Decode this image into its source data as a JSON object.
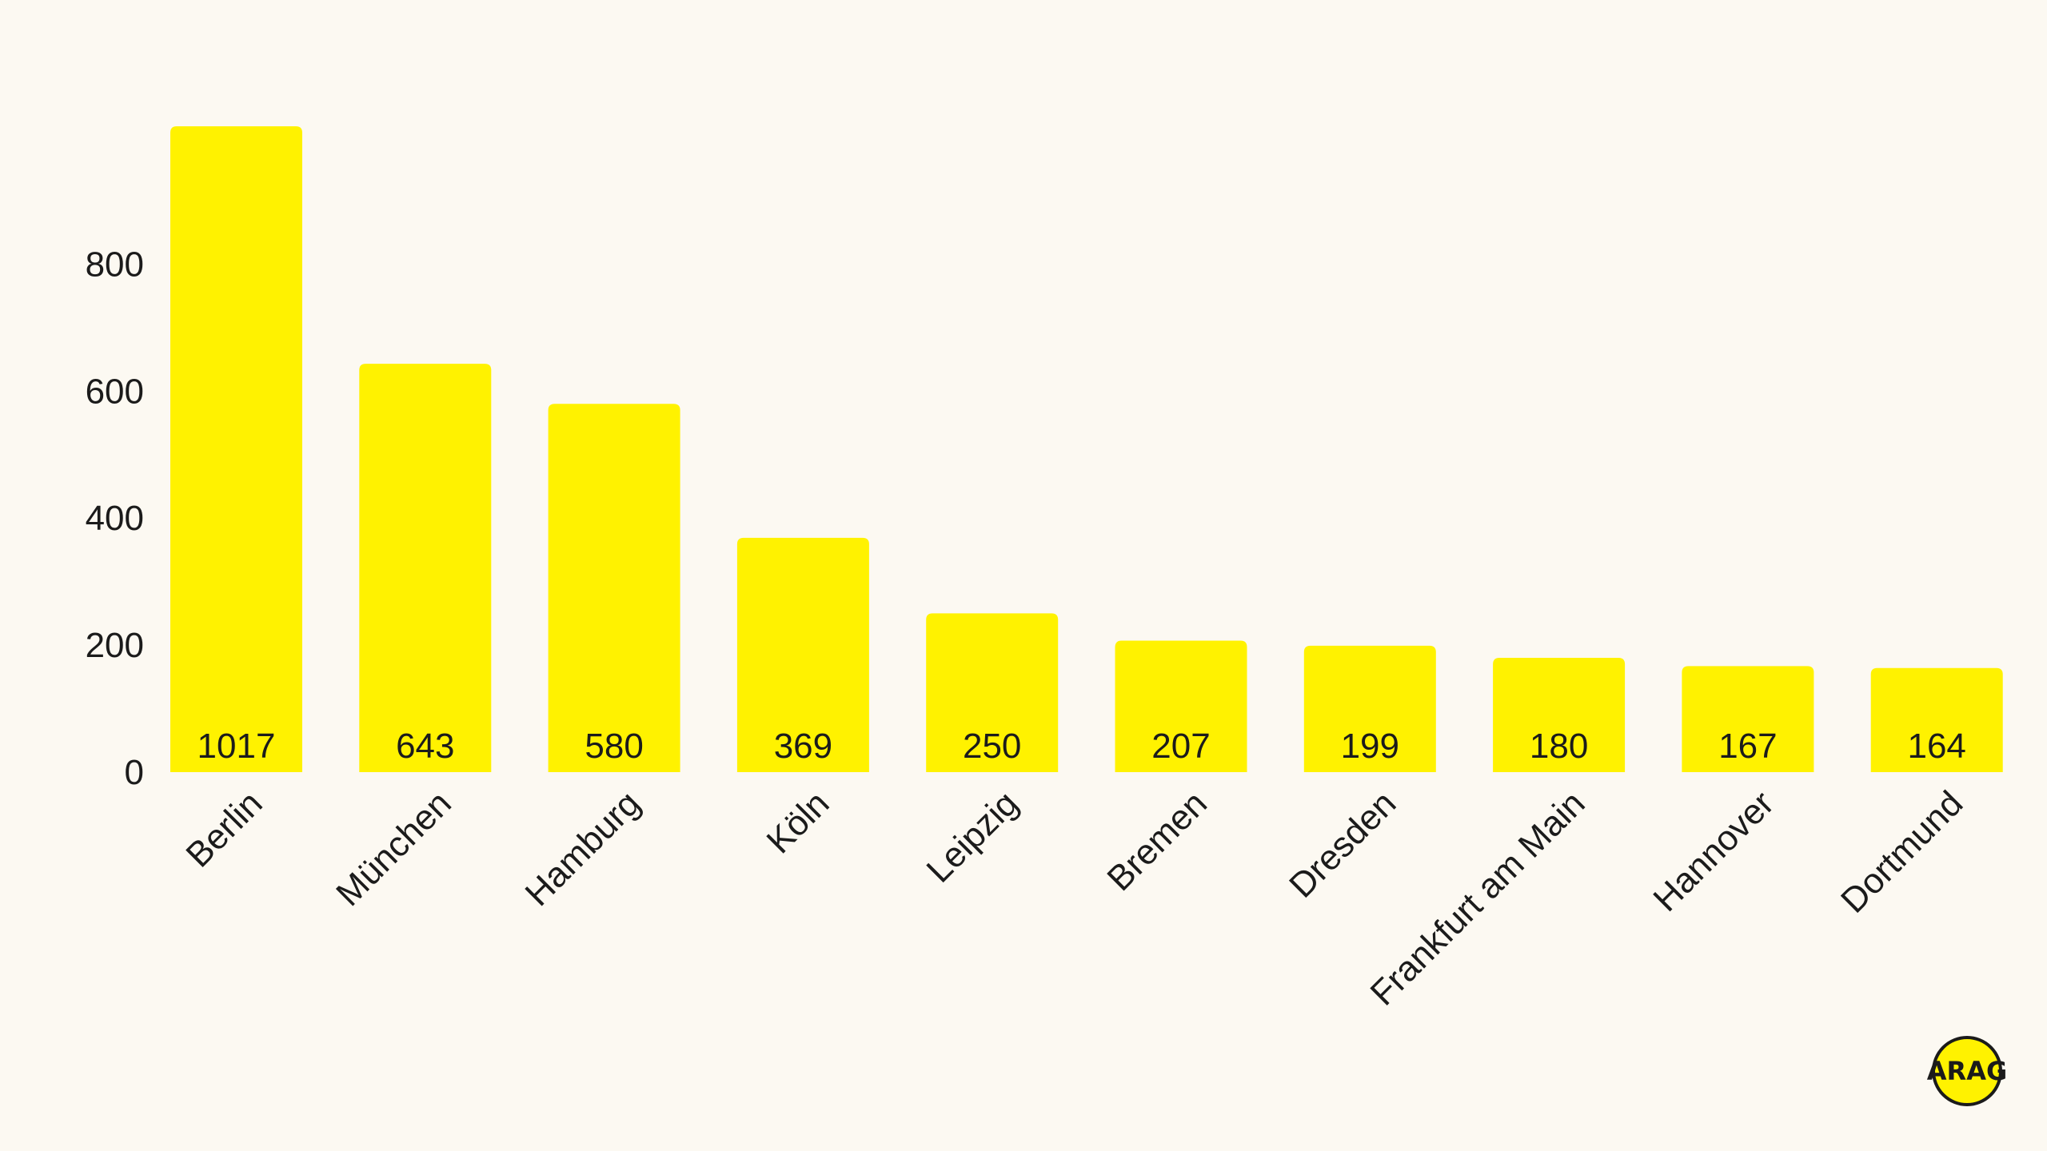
{
  "chart_data": {
    "type": "bar",
    "categories": [
      "Berlin",
      "München",
      "Hamburg",
      "Köln",
      "Leipzig",
      "Bremen",
      "Dresden",
      "Frankfurt am Main",
      "Hannover",
      "Dortmund"
    ],
    "values": [
      1017,
      643,
      580,
      369,
      250,
      207,
      199,
      180,
      167,
      164
    ],
    "data_labels": [
      "1017",
      "643",
      "580",
      "369",
      "250",
      "207",
      "199",
      "180",
      "167",
      "164"
    ],
    "yticks": [
      0,
      200,
      400,
      600,
      800
    ],
    "ylim": [
      0,
      1017
    ],
    "grid": false,
    "legend": "none",
    "bar_color": "#fff200",
    "title": "",
    "xlabel": "",
    "ylabel": ""
  },
  "brand": {
    "logo_text": "ARAG",
    "logo_color": "#fff200"
  }
}
